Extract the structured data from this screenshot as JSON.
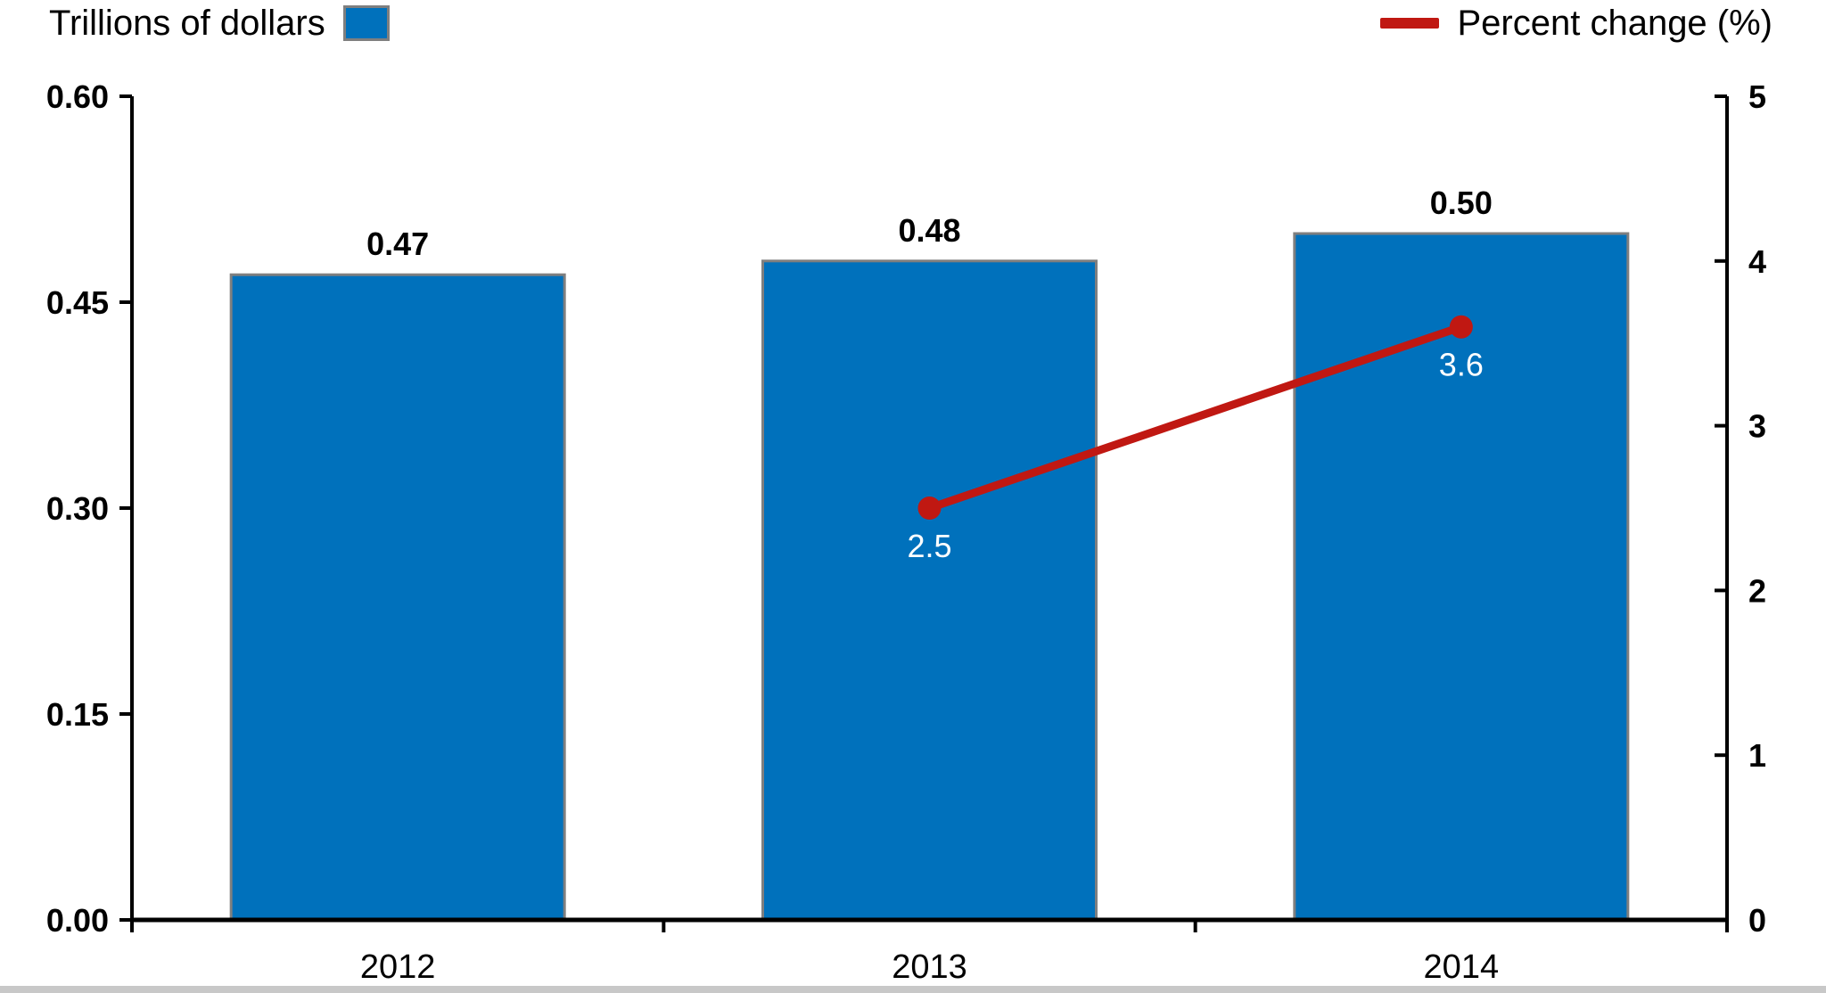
{
  "colors": {
    "bar": "#0071BC",
    "bar_border": "#7F7F7F",
    "line": "#C01812",
    "axis": "#000000",
    "text": "#000000",
    "label_on_bar": "#FFFFFF",
    "bottom_strip": "#C8C8C8"
  },
  "legend": {
    "left_label": "Trillions of dollars",
    "right_label": "Percent change (%)"
  },
  "chart_data": {
    "type": "bar+line",
    "title": "",
    "legend_position": "top",
    "grid": false,
    "categories": [
      "2012",
      "2013",
      "2014"
    ],
    "series": [
      {
        "name": "Trillions of dollars",
        "type": "bar",
        "axis": "left",
        "values": [
          0.47,
          0.48,
          0.5
        ],
        "labels": [
          "0.47",
          "0.48",
          "0.50"
        ],
        "color": "#0071BC"
      },
      {
        "name": "Percent change (%)",
        "type": "line",
        "axis": "right",
        "values": [
          null,
          2.5,
          3.6
        ],
        "labels": [
          "",
          "2.5",
          "3.6"
        ],
        "color": "#C01812"
      }
    ],
    "left_axis": {
      "label": "Trillions of dollars",
      "min": 0,
      "max": 0.6,
      "tick_values": [
        0,
        0.15,
        0.3,
        0.45,
        0.6
      ],
      "ticks": [
        "0.00",
        "0.15",
        "0.30",
        "0.45",
        "0.60"
      ]
    },
    "right_axis": {
      "label": "Percent change (%)",
      "min": 0,
      "max": 5,
      "tick_values": [
        0,
        1,
        2,
        3,
        4,
        5
      ],
      "ticks": [
        "0",
        "1",
        "2",
        "3",
        "4",
        "5"
      ]
    }
  }
}
